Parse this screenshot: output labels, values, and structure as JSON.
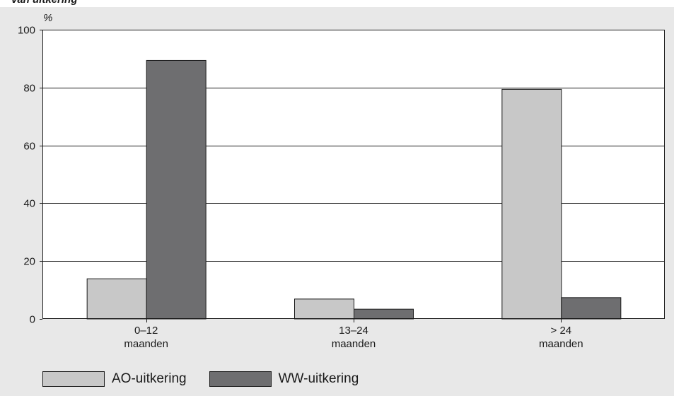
{
  "clipped_title": "van uitkering",
  "chart_data": {
    "type": "bar",
    "unit": "%",
    "categories": [
      [
        "0–12",
        "maanden"
      ],
      [
        "13–24",
        "maanden"
      ],
      [
        "> 24",
        "maanden"
      ]
    ],
    "series": [
      {
        "name": "AO-uitkering",
        "values": [
          14,
          7,
          79.5
        ],
        "color": "#c8c8c8"
      },
      {
        "name": "WW-uitkering",
        "values": [
          89.5,
          3.5,
          7.5
        ],
        "color": "#6e6e70"
      }
    ],
    "ylim": [
      0,
      100
    ],
    "yticks": [
      "0",
      "20",
      "40",
      "60",
      "80",
      "100"
    ],
    "grid": true,
    "legend": "bottom-left"
  }
}
